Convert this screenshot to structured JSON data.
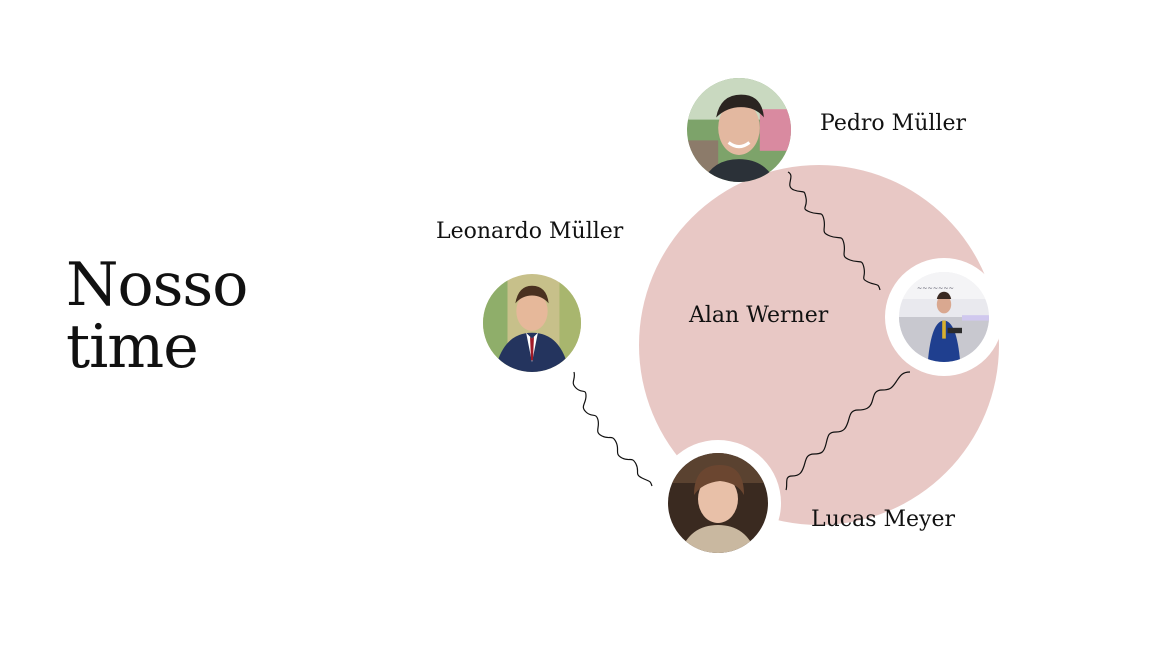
{
  "slide": {
    "title_line1": "Nosso",
    "title_line2": "time"
  },
  "team": {
    "center_name": "Alan Werner",
    "members": [
      {
        "name": "Pedro Müller"
      },
      {
        "name": "Leonardo Müller"
      },
      {
        "name": "Lucas Meyer"
      }
    ]
  },
  "colors": {
    "accent_circle": "#e8c8c5",
    "text": "#111111",
    "background": "#ffffff"
  }
}
